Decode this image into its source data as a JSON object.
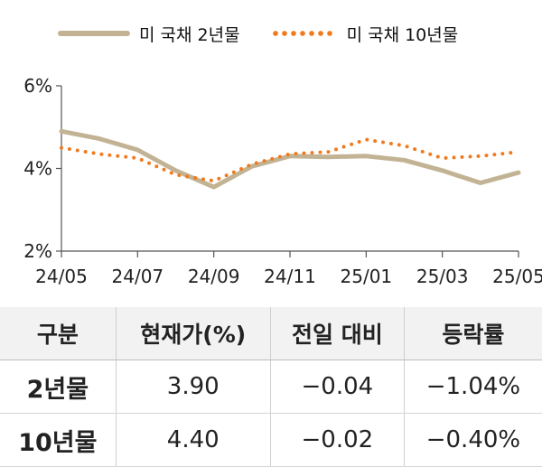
{
  "legend": {
    "series_2y": "미 국채 2년물",
    "series_10y": "미 국채 10년물"
  },
  "colors": {
    "series_2y": "#c2b394",
    "series_10y": "#f07a1e",
    "axis": "#555555"
  },
  "chart_data": {
    "type": "line",
    "y_ticks": [
      "2%",
      "4%",
      "6%"
    ],
    "ylim": [
      2,
      6
    ],
    "x_ticks": [
      "24/05",
      "24/07",
      "24/09",
      "24/11",
      "25/01",
      "25/03",
      "25/05"
    ],
    "x": [
      "24/05",
      "24/06",
      "24/07",
      "24/08",
      "24/09",
      "24/10",
      "24/11",
      "24/12",
      "25/01",
      "25/02",
      "25/03",
      "25/04",
      "25/05"
    ],
    "series": [
      {
        "name": "미 국채 2년물",
        "style": "solid",
        "values": [
          4.9,
          4.72,
          4.45,
          3.95,
          3.55,
          4.05,
          4.3,
          4.28,
          4.3,
          4.2,
          3.95,
          3.65,
          3.9
        ]
      },
      {
        "name": "미 국채 10년물",
        "style": "dotted",
        "values": [
          4.5,
          4.35,
          4.25,
          3.85,
          3.7,
          4.1,
          4.35,
          4.4,
          4.7,
          4.55,
          4.25,
          4.3,
          4.4
        ]
      }
    ]
  },
  "table": {
    "headers": [
      "구분",
      "현재가(%)",
      "전일 대비",
      "등락률"
    ],
    "rows": [
      [
        "2년물",
        "3.90",
        "−0.04",
        "−1.04%"
      ],
      [
        "10년물",
        "4.40",
        "−0.02",
        "−0.40%"
      ]
    ]
  }
}
